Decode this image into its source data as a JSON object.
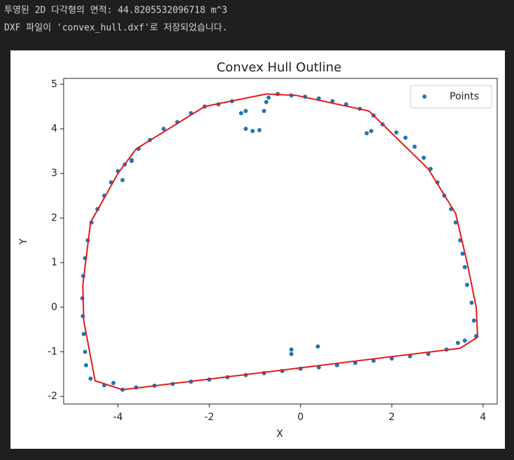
{
  "output": {
    "lines": [
      "투영된 2D 다각형의 면적: 44.8205532096718 m^3",
      "DXF 파일이 'convex_hull.dxf'로 저장되었습니다."
    ]
  },
  "chart_data": {
    "type": "scatter",
    "title": "Convex Hull Outline",
    "x_label": "X",
    "y_label": "Y",
    "xlim": [
      -5.19,
      4.31
    ],
    "ylim": [
      -2.17,
      5.13
    ],
    "xticks": [
      -4,
      -2,
      0,
      2,
      4
    ],
    "yticks": [
      -2,
      -1,
      0,
      1,
      2,
      3,
      4,
      5
    ],
    "legend": "upper right",
    "series": [
      {
        "name": "Points",
        "color": "#1f77b4",
        "x": [
          -4.72,
          -4.7,
          -4.6,
          -4.75,
          -4.77,
          -4.78,
          -4.76,
          -4.72,
          -4.66,
          -4.58,
          -4.45,
          -4.3,
          -4.15,
          -4.0,
          -3.85,
          -3.7,
          -3.55,
          -3.3,
          -3.0,
          -2.7,
          -2.4,
          -2.1,
          -1.8,
          -1.5,
          -1.3,
          -1.2,
          -1.2,
          -1.05,
          -0.9,
          -0.8,
          -0.75,
          -0.7,
          -0.5,
          -0.2,
          0.1,
          0.4,
          0.7,
          1.0,
          1.3,
          1.6,
          1.8,
          2.1,
          2.3,
          2.5,
          2.7,
          2.85,
          3.0,
          3.15,
          3.3,
          3.4,
          3.5,
          3.55,
          3.6,
          3.65,
          3.75,
          3.8,
          3.85,
          3.6,
          3.45,
          3.2,
          2.8,
          2.4,
          2.0,
          1.6,
          1.2,
          0.8,
          0.4,
          0.0,
          -0.4,
          -0.8,
          -1.2,
          -1.6,
          -2.0,
          -2.4,
          -2.8,
          -3.2,
          -3.6,
          -3.9,
          -4.1,
          -4.3,
          -0.2,
          -0.2,
          0.38,
          1.45,
          1.55,
          -3.9,
          -3.7
        ],
        "y": [
          -1.0,
          -1.3,
          -1.6,
          -0.6,
          -0.2,
          0.2,
          0.7,
          1.1,
          1.5,
          1.9,
          2.2,
          2.5,
          2.8,
          3.05,
          3.2,
          3.3,
          3.55,
          3.75,
          4.0,
          4.15,
          4.35,
          4.5,
          4.55,
          4.62,
          4.35,
          4.4,
          4.0,
          3.95,
          3.97,
          4.4,
          4.6,
          4.7,
          4.78,
          4.75,
          4.72,
          4.68,
          4.62,
          4.55,
          4.45,
          4.3,
          4.1,
          3.92,
          3.8,
          3.6,
          3.35,
          3.1,
          2.8,
          2.5,
          2.2,
          1.9,
          1.5,
          1.2,
          0.9,
          0.5,
          0.1,
          -0.3,
          -0.65,
          -0.75,
          -0.8,
          -0.95,
          -1.05,
          -1.1,
          -1.15,
          -1.2,
          -1.25,
          -1.3,
          -1.35,
          -1.38,
          -1.43,
          -1.48,
          -1.52,
          -1.57,
          -1.62,
          -1.67,
          -1.72,
          -1.76,
          -1.8,
          -1.85,
          -1.7,
          -1.75,
          -0.95,
          -1.05,
          -0.88,
          3.9,
          3.95,
          2.85,
          3.28
        ]
      },
      {
        "color": "#e41a1c",
        "x": [
          -4.77,
          -4.6,
          -4.0,
          -3.6,
          -2.1,
          -0.75,
          -0.1,
          1.5,
          2.8,
          3.4,
          3.65,
          3.85,
          3.88,
          3.5,
          -3.9,
          -4.5,
          -4.75,
          -4.77
        ],
        "y": [
          0.5,
          1.9,
          3.0,
          3.55,
          4.5,
          4.78,
          4.75,
          4.4,
          3.1,
          2.1,
          1.0,
          0.0,
          -0.67,
          -0.92,
          -1.85,
          -1.65,
          -0.3,
          0.5
        ]
      }
    ]
  }
}
